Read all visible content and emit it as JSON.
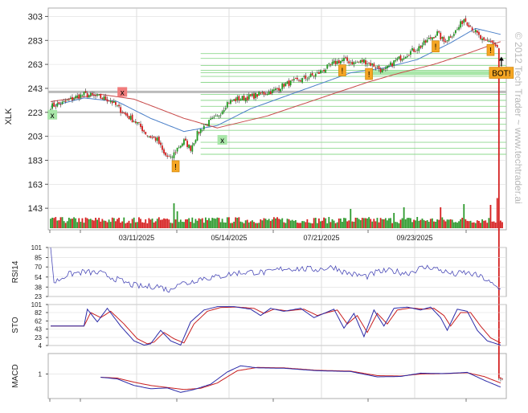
{
  "chart_data": {
    "type": "candlestick",
    "symbol": "XLK",
    "watermark": "© 2012 Tech Trader ~ www.techtrader.ai",
    "x_labels": [
      "03/11/2025",
      "05/14/2025",
      "07/21/2025",
      "09/23/2025"
    ],
    "price": {
      "ylabel": "XLK",
      "yticks": [
        143,
        163,
        183,
        203,
        223,
        243,
        263,
        283,
        303
      ],
      "ylim": [
        125,
        310
      ],
      "resistance_level": 240,
      "support_lines": [
        188,
        193,
        198,
        208,
        213,
        218,
        223,
        228,
        233,
        238,
        248,
        253,
        256,
        258,
        262,
        268,
        272
      ],
      "anchors": [
        [
          0,
          228
        ],
        [
          8,
          231
        ],
        [
          14,
          235
        ],
        [
          20,
          238
        ],
        [
          28,
          236
        ],
        [
          36,
          233
        ],
        [
          44,
          222
        ],
        [
          52,
          214
        ],
        [
          58,
          204
        ],
        [
          64,
          200
        ],
        [
          68,
          188
        ],
        [
          72,
          184
        ],
        [
          76,
          193
        ],
        [
          80,
          199
        ],
        [
          84,
          193
        ],
        [
          88,
          205
        ],
        [
          92,
          212
        ],
        [
          100,
          219
        ],
        [
          106,
          231
        ],
        [
          112,
          234
        ],
        [
          120,
          236
        ],
        [
          128,
          239
        ],
        [
          134,
          241
        ],
        [
          140,
          246
        ],
        [
          150,
          250
        ],
        [
          160,
          255
        ],
        [
          170,
          264
        ],
        [
          176,
          267
        ],
        [
          182,
          264
        ],
        [
          188,
          266
        ],
        [
          194,
          262
        ],
        [
          200,
          257
        ],
        [
          206,
          265
        ],
        [
          214,
          272
        ],
        [
          222,
          278
        ],
        [
          228,
          285
        ],
        [
          232,
          289
        ],
        [
          236,
          282
        ],
        [
          240,
          287
        ],
        [
          244,
          292
        ],
        [
          248,
          301
        ],
        [
          252,
          295
        ],
        [
          256,
          288
        ],
        [
          260,
          281
        ],
        [
          264,
          283
        ],
        [
          268,
          277
        ]
      ],
      "ma_fast": [
        [
          0,
          228
        ],
        [
          20,
          235
        ],
        [
          40,
          232
        ],
        [
          60,
          218
        ],
        [
          80,
          207
        ],
        [
          100,
          212
        ],
        [
          120,
          226
        ],
        [
          140,
          236
        ],
        [
          160,
          246
        ],
        [
          180,
          256
        ],
        [
          200,
          260
        ],
        [
          220,
          267
        ],
        [
          240,
          281
        ],
        [
          255,
          293
        ],
        [
          270,
          288
        ]
      ],
      "ma_slow": [
        [
          0,
          232
        ],
        [
          30,
          238
        ],
        [
          50,
          234
        ],
        [
          80,
          218
        ],
        [
          100,
          210
        ],
        [
          130,
          220
        ],
        [
          160,
          234
        ],
        [
          190,
          248
        ],
        [
          210,
          256
        ],
        [
          230,
          263
        ],
        [
          250,
          272
        ],
        [
          270,
          282
        ]
      ],
      "volume_spikes": [
        [
          17,
          0.25
        ],
        [
          74,
          0.62
        ],
        [
          76,
          0.42
        ],
        [
          180,
          0.48
        ],
        [
          200,
          0.22
        ],
        [
          206,
          0.38
        ],
        [
          212,
          0.52
        ],
        [
          220,
          0.28
        ],
        [
          234,
          0.52
        ],
        [
          248,
          0.6
        ],
        [
          264,
          0.58
        ],
        [
          268,
          0.75
        ]
      ],
      "signals": [
        {
          "kind": "sell",
          "label": "x",
          "bar": 43,
          "price": 240
        },
        {
          "kind": "buy",
          "label": "x",
          "bar": 1,
          "price": 221
        },
        {
          "kind": "buy",
          "label": "x",
          "bar": 103,
          "price": 200
        },
        {
          "kind": "alert",
          "label": "!",
          "bar": 75,
          "price": 178
        },
        {
          "kind": "alert",
          "label": "!",
          "bar": 175,
          "price": 258
        },
        {
          "kind": "alert",
          "label": "!",
          "bar": 191,
          "price": 255
        },
        {
          "kind": "alert",
          "label": "!",
          "bar": 231,
          "price": 278
        },
        {
          "kind": "alert",
          "label": "!",
          "bar": 264,
          "price": 275
        },
        {
          "kind": "bot",
          "label": "BOT!",
          "bar": 270,
          "price": 256
        }
      ]
    },
    "rsi": {
      "ylabel": "RSI14",
      "yticks": [
        23,
        38,
        54,
        70,
        85,
        101
      ],
      "ylim": [
        23,
        101
      ],
      "anchors": [
        [
          0,
          101
        ],
        [
          2,
          45
        ],
        [
          10,
          58
        ],
        [
          20,
          62
        ],
        [
          30,
          60
        ],
        [
          40,
          50
        ],
        [
          48,
          42
        ],
        [
          56,
          38
        ],
        [
          64,
          40
        ],
        [
          72,
          32
        ],
        [
          76,
          45
        ],
        [
          82,
          44
        ],
        [
          90,
          52
        ],
        [
          100,
          54
        ],
        [
          110,
          60
        ],
        [
          120,
          62
        ],
        [
          130,
          61
        ],
        [
          140,
          68
        ],
        [
          150,
          67
        ],
        [
          160,
          66
        ],
        [
          170,
          70
        ],
        [
          176,
          62
        ],
        [
          182,
          58
        ],
        [
          190,
          55
        ],
        [
          196,
          62
        ],
        [
          204,
          64
        ],
        [
          214,
          60
        ],
        [
          222,
          68
        ],
        [
          228,
          70
        ],
        [
          236,
          63
        ],
        [
          242,
          58
        ],
        [
          248,
          61
        ],
        [
          254,
          58
        ],
        [
          260,
          52
        ],
        [
          266,
          40
        ],
        [
          270,
          34
        ]
      ]
    },
    "sto": {
      "ylabel": "STO",
      "yticks": [
        4,
        23,
        43,
        62,
        82,
        101
      ],
      "ylim": [
        4,
        101
      ],
      "k_anchors": [
        [
          0,
          50
        ],
        [
          20,
          50
        ],
        [
          22,
          90
        ],
        [
          28,
          60
        ],
        [
          34,
          92
        ],
        [
          42,
          50
        ],
        [
          50,
          15
        ],
        [
          56,
          5
        ],
        [
          60,
          8
        ],
        [
          66,
          40
        ],
        [
          72,
          15
        ],
        [
          78,
          5
        ],
        [
          84,
          60
        ],
        [
          92,
          88
        ],
        [
          100,
          96
        ],
        [
          110,
          96
        ],
        [
          120,
          90
        ],
        [
          126,
          75
        ],
        [
          132,
          92
        ],
        [
          140,
          85
        ],
        [
          150,
          92
        ],
        [
          158,
          70
        ],
        [
          164,
          80
        ],
        [
          170,
          90
        ],
        [
          176,
          45
        ],
        [
          182,
          80
        ],
        [
          188,
          25
        ],
        [
          194,
          88
        ],
        [
          200,
          50
        ],
        [
          206,
          92
        ],
        [
          214,
          95
        ],
        [
          222,
          88
        ],
        [
          228,
          95
        ],
        [
          234,
          70
        ],
        [
          238,
          40
        ],
        [
          244,
          90
        ],
        [
          250,
          85
        ],
        [
          256,
          40
        ],
        [
          262,
          15
        ],
        [
          270,
          5
        ]
      ],
      "d_anchors": [
        [
          0,
          50
        ],
        [
          20,
          50
        ],
        [
          24,
          82
        ],
        [
          30,
          70
        ],
        [
          36,
          85
        ],
        [
          44,
          55
        ],
        [
          52,
          20
        ],
        [
          58,
          8
        ],
        [
          62,
          12
        ],
        [
          68,
          35
        ],
        [
          74,
          20
        ],
        [
          80,
          10
        ],
        [
          86,
          55
        ],
        [
          94,
          85
        ],
        [
          102,
          94
        ],
        [
          112,
          95
        ],
        [
          122,
          92
        ],
        [
          128,
          80
        ],
        [
          134,
          90
        ],
        [
          142,
          86
        ],
        [
          152,
          90
        ],
        [
          160,
          75
        ],
        [
          166,
          82
        ],
        [
          172,
          88
        ],
        [
          178,
          55
        ],
        [
          184,
          75
        ],
        [
          190,
          35
        ],
        [
          196,
          80
        ],
        [
          202,
          55
        ],
        [
          208,
          88
        ],
        [
          216,
          93
        ],
        [
          224,
          90
        ],
        [
          230,
          92
        ],
        [
          236,
          75
        ],
        [
          240,
          50
        ],
        [
          246,
          82
        ],
        [
          252,
          82
        ],
        [
          258,
          50
        ],
        [
          264,
          22
        ],
        [
          270,
          10
        ]
      ]
    },
    "macd": {
      "ylabel": "MACD",
      "yticks": [
        1
      ],
      "ylim": [
        -5,
        6
      ],
      "macd_anchors": [
        [
          30,
          0.2
        ],
        [
          40,
          -0.2
        ],
        [
          50,
          -1.8
        ],
        [
          60,
          -2.6
        ],
        [
          70,
          -2.4
        ],
        [
          78,
          -3.5
        ],
        [
          86,
          -2.8
        ],
        [
          96,
          -1.5
        ],
        [
          106,
          1.5
        ],
        [
          114,
          3.0
        ],
        [
          124,
          2.5
        ],
        [
          140,
          2.4
        ],
        [
          160,
          1.8
        ],
        [
          180,
          1.6
        ],
        [
          196,
          0.3
        ],
        [
          210,
          0.4
        ],
        [
          222,
          1.2
        ],
        [
          236,
          1.1
        ],
        [
          250,
          1.4
        ],
        [
          260,
          -0.5
        ],
        [
          270,
          -2.2
        ]
      ],
      "signal_anchors": [
        [
          30,
          0.2
        ],
        [
          40,
          0.0
        ],
        [
          50,
          -1.0
        ],
        [
          60,
          -1.8
        ],
        [
          70,
          -2.3
        ],
        [
          80,
          -2.8
        ],
        [
          90,
          -2.5
        ],
        [
          100,
          -1.2
        ],
        [
          112,
          1.8
        ],
        [
          124,
          2.6
        ],
        [
          140,
          2.5
        ],
        [
          160,
          1.9
        ],
        [
          180,
          1.7
        ],
        [
          196,
          0.6
        ],
        [
          210,
          0.5
        ],
        [
          222,
          1.0
        ],
        [
          236,
          1.1
        ],
        [
          250,
          1.3
        ],
        [
          260,
          0.4
        ],
        [
          270,
          -1.2
        ]
      ]
    }
  }
}
